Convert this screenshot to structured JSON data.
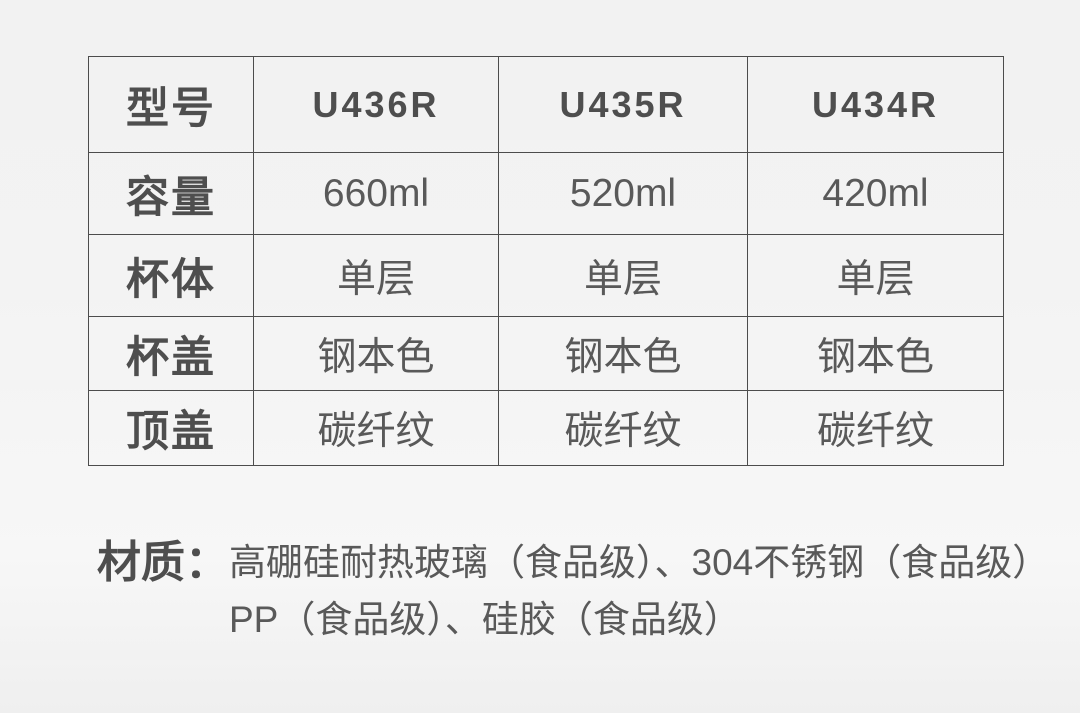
{
  "page": {
    "background_color": "#f2f2f2",
    "table_border_color": "#4c4c4c",
    "label_text_color": "#4e4e4e",
    "value_text_color": "#595959"
  },
  "spec_table": {
    "header": {
      "label": "型号",
      "models": [
        "U436R",
        "U435R",
        "U434R"
      ]
    },
    "rows": [
      {
        "label": "容量",
        "values": [
          "660ml",
          "520ml",
          "420ml"
        ]
      },
      {
        "label": "杯体",
        "values": [
          "单层",
          "单层",
          "单层"
        ]
      },
      {
        "label": "杯盖",
        "values": [
          "钢本色",
          "钢本色",
          "钢本色"
        ]
      },
      {
        "label": "顶盖",
        "values": [
          "碳纤纹",
          "碳纤纹",
          "碳纤纹"
        ]
      }
    ]
  },
  "material": {
    "label": "材质：",
    "lines": [
      "高硼硅耐热玻璃（食品级）、304不锈钢（食品级）",
      "PP（食品级）、硅胶（食品级）"
    ]
  }
}
